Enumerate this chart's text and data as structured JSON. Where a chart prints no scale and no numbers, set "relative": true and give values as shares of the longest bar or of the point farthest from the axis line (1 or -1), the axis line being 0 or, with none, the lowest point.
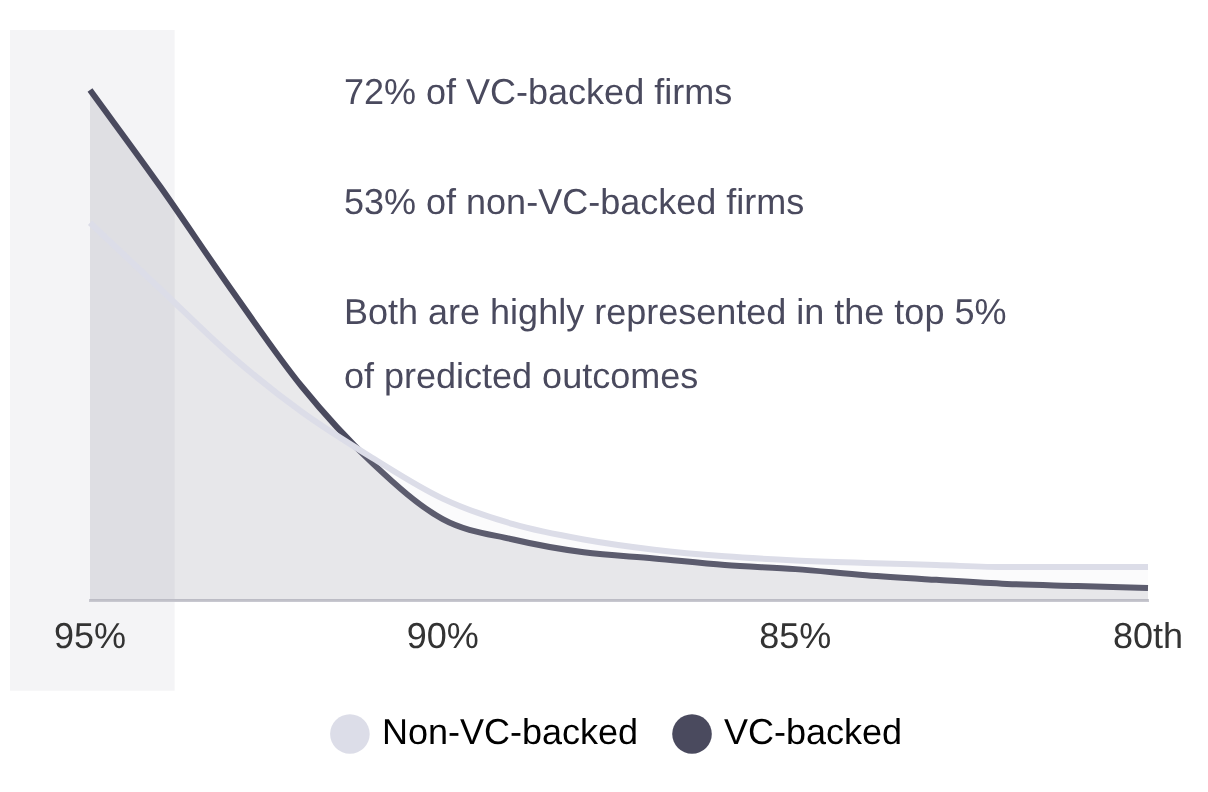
{
  "chart_data": {
    "type": "area",
    "relative": true,
    "x": [
      95,
      94,
      93,
      92,
      91,
      90,
      89,
      88,
      87,
      86,
      85,
      84,
      83,
      82,
      81,
      80
    ],
    "xlim": [
      95,
      80
    ],
    "xticks": [
      {
        "value": 95,
        "label": "95%"
      },
      {
        "value": 90,
        "label": "90%"
      },
      {
        "value": 85,
        "label": "85%"
      },
      {
        "value": 80,
        "label": "80th"
      }
    ],
    "series": [
      {
        "name": "Non-VC-backed",
        "color": "#dcdde8",
        "values": [
          0.74,
          0.61,
          0.48,
          0.37,
          0.28,
          0.2,
          0.15,
          0.12,
          0.1,
          0.087,
          0.079,
          0.074,
          0.07,
          0.066,
          0.066,
          0.066
        ]
      },
      {
        "name": "VC-backed",
        "color": "#4a4a5e",
        "values": [
          1.0,
          0.81,
          0.61,
          0.42,
          0.27,
          0.16,
          0.12,
          0.095,
          0.083,
          0.07,
          0.062,
          0.05,
          0.041,
          0.033,
          0.029,
          0.025
        ]
      }
    ],
    "bands": [
      {
        "axis": "x",
        "from": 95,
        "to": 93.8,
        "color": "#f4f4f6"
      }
    ],
    "annotations": [
      "72% of VC-backed firms",
      "53% of non-VC-backed firms",
      "Both are highly represented in the top 5% of predicted outcomes"
    ],
    "legend": "bottom",
    "grid": false,
    "marker": "none",
    "line_style": "solid"
  }
}
